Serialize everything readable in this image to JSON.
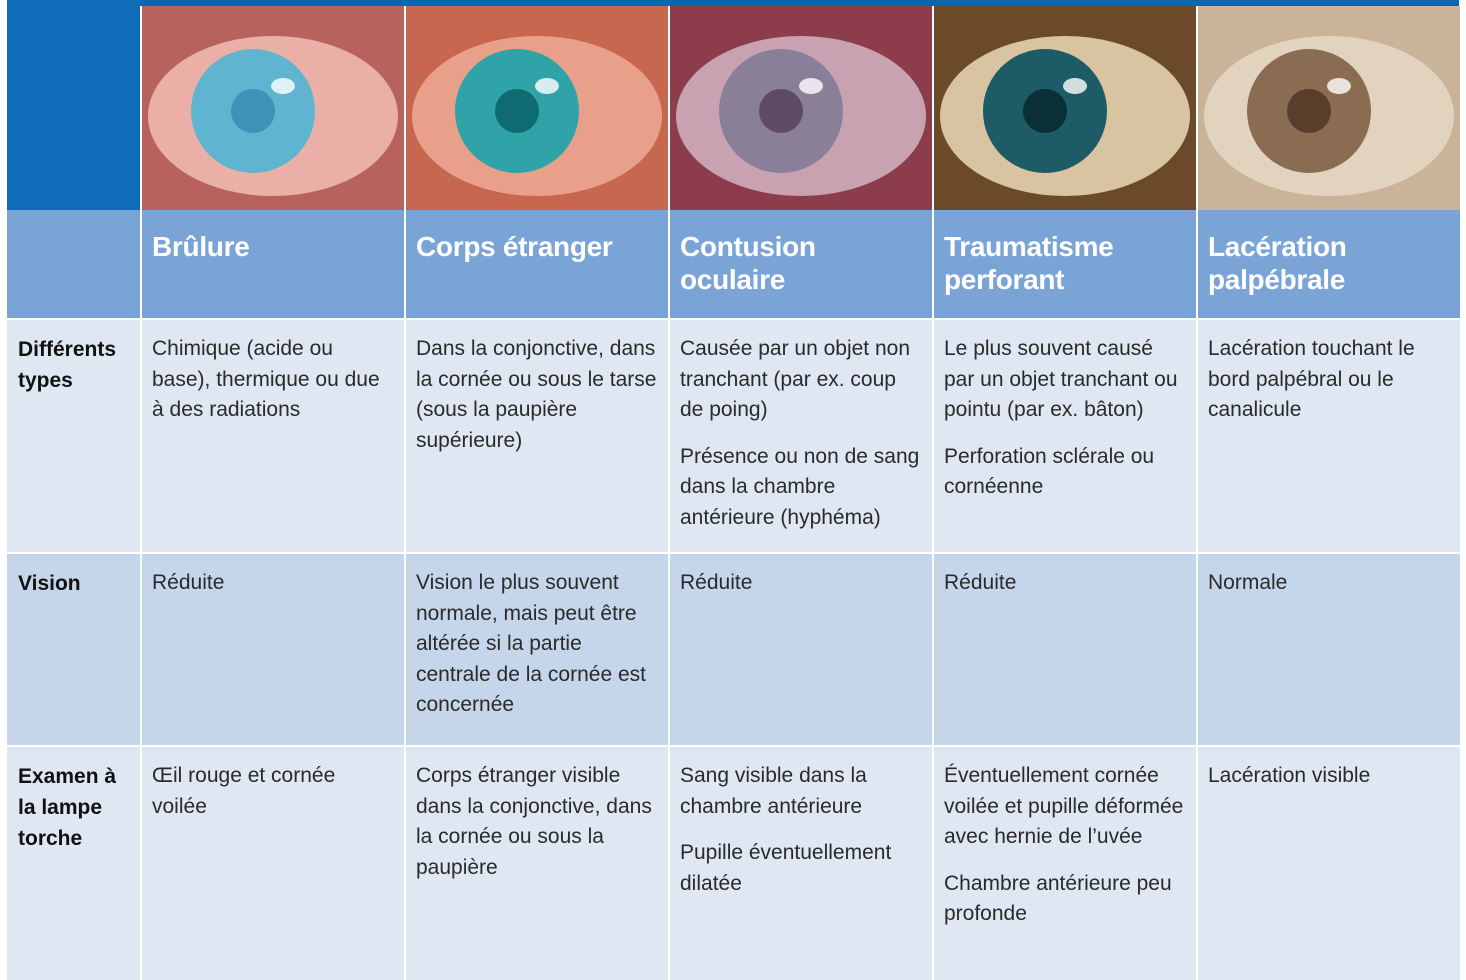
{
  "header": {
    "columns": [
      "Brûlure",
      "Corps étranger",
      "Contusion oculaire",
      "Traumatisme perforant",
      "Lacération palpébrale"
    ]
  },
  "rows": [
    {
      "label": "Différents types",
      "cells": [
        [
          "Chimique (acide ou base), thermique ou due à des radiations"
        ],
        [
          "Dans la conjonctive, dans la cornée ou sous le tarse (sous la paupière supérieure)"
        ],
        [
          "Causée par un objet non tranchant (par ex. coup de poing)",
          "Présence ou non de sang dans la chambre antérieure (hyphéma)"
        ],
        [
          "Le plus souvent causé par un objet tranchant ou pointu (par ex. bâton)",
          "Perforation sclérale ou cornéenne"
        ],
        [
          "Lacération touchant le bord palpébral ou le canalicule"
        ]
      ]
    },
    {
      "label": "Vision",
      "cells": [
        [
          "Réduite"
        ],
        [
          "Vision le plus souvent normale, mais peut être altérée si la partie centrale de la cornée est concernée"
        ],
        [
          "Réduite"
        ],
        [
          "Réduite"
        ],
        [
          "Normale"
        ]
      ]
    },
    {
      "label": "Examen à la lampe torche",
      "cells": [
        [
          "Œil rouge et cornée voilée"
        ],
        [
          "Corps étranger visible dans la conjonctive, dans la cornée ou sous la paupière"
        ],
        [
          "Sang visible dans la chambre antérieure",
          "Pupille éventuellement dilatée"
        ],
        [
          "Éventuellement cornée voilée et pupille déformée avec hernie de l’uvée",
          "Chambre antérieure peu profonde"
        ],
        [
          "Lacération visible"
        ]
      ]
    }
  ]
}
